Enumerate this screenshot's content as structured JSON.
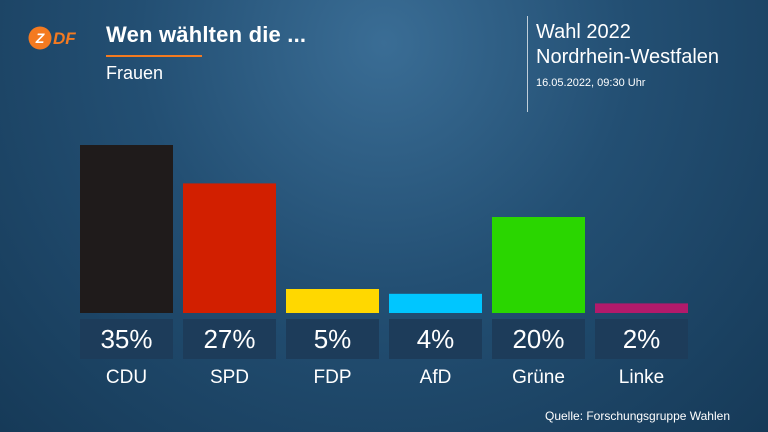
{
  "header": {
    "logo_text": "ZDF",
    "title": "Wen wählten die ...",
    "subtitle": "Frauen",
    "election": "Wahl 2022",
    "region": "Nordrhein-Westfalen",
    "timestamp": "16.05.2022, 09:30 Uhr"
  },
  "colors": {
    "accent": "#f47a20",
    "CDU": "#1f1b1b",
    "SPD": "#d21f00",
    "FDP": "#ffd800",
    "AfD": "#00c6ff",
    "Grüne": "#2ad600",
    "Linke": "#b21a6b"
  },
  "chart_data": {
    "type": "bar",
    "title": "Wen wählten die ...",
    "subtitle": "Frauen",
    "categories": [
      "CDU",
      "SPD",
      "FDP",
      "AfD",
      "Grüne",
      "Linke"
    ],
    "values": [
      35,
      27,
      5,
      4,
      20,
      2
    ],
    "value_labels": [
      "35%",
      "27%",
      "5%",
      "4%",
      "20%",
      "2%"
    ],
    "unit": "%",
    "ylim": [
      0,
      35
    ],
    "grid": false,
    "legend": "none"
  },
  "footer": {
    "source": "Quelle: Forschungsgruppe Wahlen"
  }
}
